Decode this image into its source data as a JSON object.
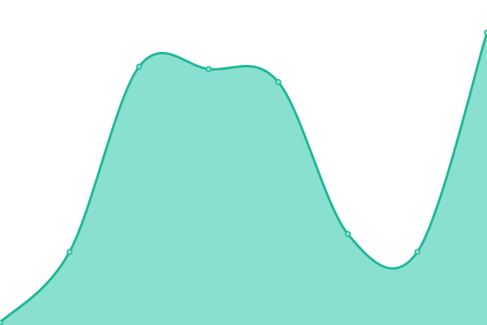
{
  "chart_data": {
    "type": "area",
    "x": [
      0,
      1,
      2,
      3,
      4,
      5,
      6,
      7
    ],
    "values": [
      0.75,
      22.5,
      79.5,
      78.75,
      74.75,
      28,
      22.5,
      90
    ],
    "ylim": [
      0,
      100
    ],
    "title": "",
    "xlabel": "",
    "ylabel": "",
    "grid": false,
    "axes_visible": false,
    "curve": "smooth",
    "markers": true,
    "colors": {
      "line": "#1fb897",
      "fill": "#8ae0d0",
      "marker_fill": "#8ae0d0"
    }
  }
}
